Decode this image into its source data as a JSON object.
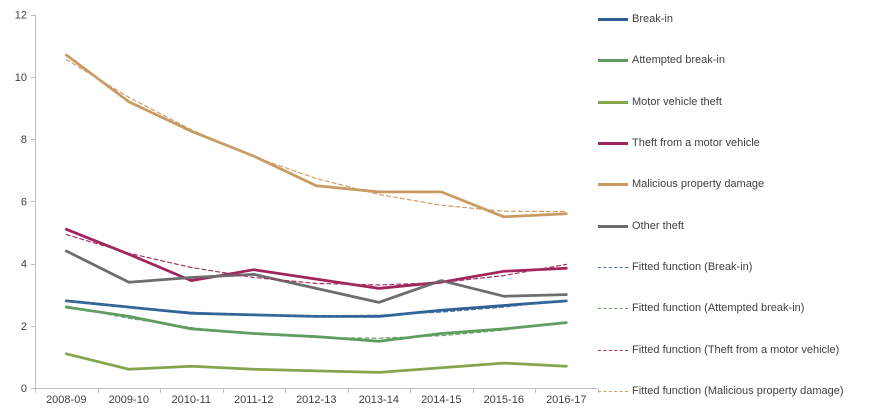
{
  "chart_data": {
    "type": "line",
    "title": "",
    "xlabel": "",
    "ylabel": "",
    "categories": [
      "2008-09",
      "2009-10",
      "2010-11",
      "2011-12",
      "2012-13",
      "2013-14",
      "2014-15",
      "2015-16",
      "2016-17"
    ],
    "ylim": [
      0,
      12
    ],
    "y_ticks": [
      0,
      2,
      4,
      6,
      8,
      10,
      12
    ],
    "grid": false,
    "legend_position": "right",
    "axis_color": "#bfbfbf",
    "tick_label_color": "#404040",
    "series": [
      {
        "name": "Break-in",
        "color": "#2e6096",
        "style": "solid",
        "values": [
          2.8,
          2.6,
          2.4,
          2.35,
          2.3,
          2.3,
          2.5,
          2.65,
          2.8
        ]
      },
      {
        "name": "Attempted break-in",
        "color": "#5e9c60",
        "style": "solid",
        "values": [
          2.6,
          2.3,
          1.9,
          1.75,
          1.65,
          1.5,
          1.75,
          1.9,
          2.1
        ]
      },
      {
        "name": "Motor vehicle theft",
        "color": "#86a44e",
        "style": "solid",
        "values": [
          1.1,
          0.6,
          0.7,
          0.6,
          0.55,
          0.5,
          0.65,
          0.8,
          0.7
        ]
      },
      {
        "name": "Theft from a motor vehicle",
        "color": "#a0255c",
        "style": "solid",
        "values": [
          5.1,
          4.3,
          3.45,
          3.8,
          3.5,
          3.2,
          3.4,
          3.75,
          3.85
        ]
      },
      {
        "name": "Malicious property damage",
        "color": "#c99a62",
        "style": "solid",
        "values": [
          10.7,
          9.2,
          8.25,
          7.45,
          6.5,
          6.3,
          6.3,
          5.5,
          5.6
        ]
      },
      {
        "name": "Other theft",
        "color": "#6d6d6d",
        "style": "solid",
        "values": [
          4.4,
          3.4,
          3.55,
          3.65,
          3.2,
          2.75,
          3.45,
          2.95,
          3.0
        ]
      },
      {
        "name": "Fitted function (Break-in)",
        "color": "#3e6fa5",
        "style": "dashed",
        "values": [
          2.8,
          2.59,
          2.44,
          2.35,
          2.32,
          2.34,
          2.44,
          2.6,
          2.82
        ]
      },
      {
        "name": "Fitted function (Attempted break-in)",
        "color": "#639f65",
        "style": "dashed",
        "values": [
          2.63,
          2.24,
          1.94,
          1.73,
          1.62,
          1.6,
          1.68,
          1.86,
          2.13
        ]
      },
      {
        "name": "Fitted function (Theft from a motor vehicle)",
        "color": "#a43263",
        "style": "dashed",
        "values": [
          4.93,
          4.33,
          3.87,
          3.55,
          3.36,
          3.31,
          3.39,
          3.61,
          3.97
        ]
      },
      {
        "name": "Fitted function (Malicious property damage)",
        "color": "#cc9f6b",
        "style": "dashed",
        "values": [
          10.55,
          9.34,
          8.3,
          7.43,
          6.73,
          6.22,
          5.87,
          5.68,
          5.67
        ]
      }
    ]
  }
}
